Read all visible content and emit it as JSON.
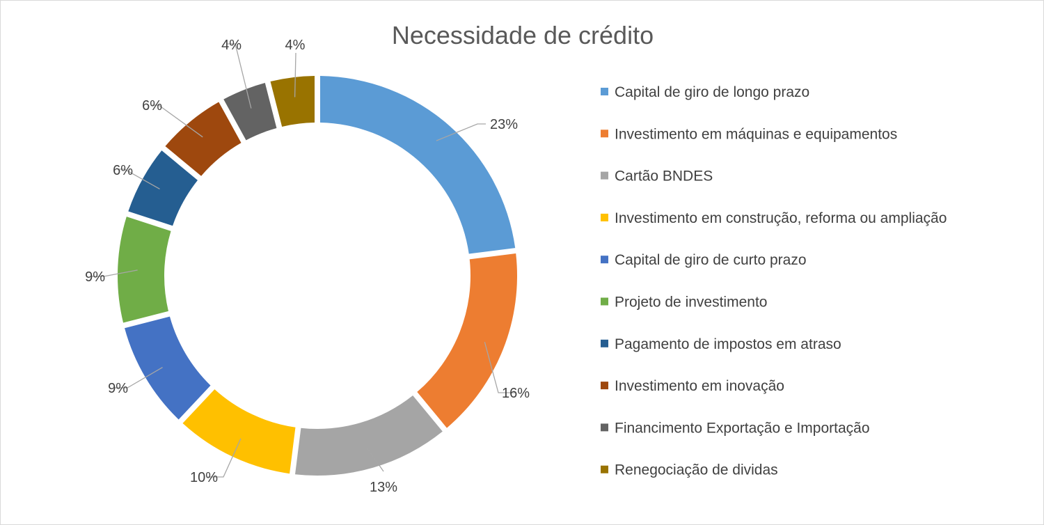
{
  "chart_data": {
    "type": "pie",
    "variant": "doughnut",
    "title": "Necessidade de crédito",
    "categories": [
      "Capital de giro de longo prazo",
      "Investimento em máquinas e equipamentos",
      "Cartão BNDES",
      "Investimento em construção, reforma ou ampliação",
      "Capital de giro de curto prazo",
      "Projeto de investimento",
      "Pagamento de impostos em atraso",
      "Investimento em inovação",
      "Financimento Exportação e Importação",
      "Renegociação de dividas"
    ],
    "values": [
      23,
      16,
      13,
      10,
      9,
      9,
      6,
      6,
      4,
      4
    ],
    "labels": [
      "23%",
      "16%",
      "13%",
      "10%",
      "9%",
      "9%",
      "6%",
      "6%",
      "4%",
      "4%"
    ],
    "colors": [
      "#5b9bd5",
      "#ed7d31",
      "#a5a5a5",
      "#ffc000",
      "#4472c4",
      "#70ad47",
      "#255e91",
      "#9e480e",
      "#636363",
      "#997300"
    ],
    "legend_position": "right"
  }
}
